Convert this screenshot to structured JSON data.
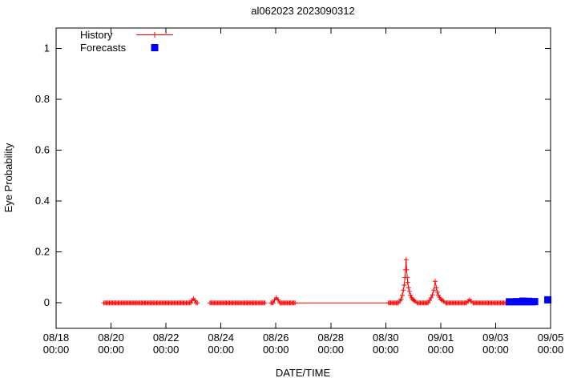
{
  "page": {
    "background": "#ffffff"
  },
  "legend": {
    "history_label": "History",
    "forecasts_label": "Forecasts"
  },
  "chart_data": {
    "type": "line",
    "title": "al062023 2023090312",
    "xlabel": "DATE/TIME",
    "ylabel": "Eye Probability",
    "x_unit": "days since 08/18 00:00",
    "xlim": [
      0,
      18
    ],
    "ylim": [
      -0.1,
      1.08
    ],
    "grid": false,
    "legend_position": "top-left-inside",
    "y_ticks": [
      {
        "value": 0,
        "label": "0"
      },
      {
        "value": 0.2,
        "label": "0.2"
      },
      {
        "value": 0.4,
        "label": "0.4"
      },
      {
        "value": 0.6,
        "label": "0.6"
      },
      {
        "value": 0.8,
        "label": "0.8"
      },
      {
        "value": 1,
        "label": "1"
      }
    ],
    "x_ticks": [
      {
        "day": 0,
        "date": "08/18",
        "time": "00:00"
      },
      {
        "day": 2,
        "date": "08/20",
        "time": "00:00"
      },
      {
        "day": 4,
        "date": "08/22",
        "time": "00:00"
      },
      {
        "day": 6,
        "date": "08/24",
        "time": "00:00"
      },
      {
        "day": 8,
        "date": "08/26",
        "time": "00:00"
      },
      {
        "day": 10,
        "date": "08/28",
        "time": "00:00"
      },
      {
        "day": 12,
        "date": "08/30",
        "time": "00:00"
      },
      {
        "day": 14,
        "date": "09/01",
        "time": "00:00"
      },
      {
        "day": 16,
        "date": "09/03",
        "time": "00:00"
      },
      {
        "day": 18,
        "date": "09/05",
        "time": "00:00"
      }
    ],
    "series": [
      {
        "name": "History",
        "style": "linespoints",
        "marker": "plus",
        "color": "#ff0000",
        "sample_step_days": 0.04,
        "segments": [
          {
            "markers": true,
            "zero_run": [
              1.74,
              5.15
            ],
            "points": [
              [
                4.95,
                0.01
              ],
              [
                5.0,
                0.016
              ],
              [
                5.05,
                0.01
              ]
            ]
          },
          {
            "markers": true,
            "zero_run": [
              5.6,
              7.62
            ],
            "points": []
          },
          {
            "markers": true,
            "zero_run": [
              7.82,
              8.7
            ],
            "points": [
              [
                7.95,
                0.012
              ],
              [
                8.02,
                0.02
              ],
              [
                8.08,
                0.012
              ]
            ]
          },
          {
            "markers": false,
            "zero_run": [
              8.7,
              12.1
            ],
            "points": []
          },
          {
            "markers": true,
            "zero_run": [
              12.1,
              16.4
            ],
            "points": [
              [
                12.52,
                0.008
              ],
              [
                12.56,
                0.015
              ],
              [
                12.6,
                0.03
              ],
              [
                12.64,
                0.05
              ],
              [
                12.67,
                0.07
              ],
              [
                12.7,
                0.1
              ],
              [
                12.72,
                0.13
              ],
              [
                12.74,
                0.17
              ],
              [
                12.76,
                0.13
              ],
              [
                12.78,
                0.1
              ],
              [
                12.8,
                0.08
              ],
              [
                12.83,
                0.06
              ],
              [
                12.86,
                0.045
              ],
              [
                12.9,
                0.03
              ],
              [
                12.94,
                0.02
              ],
              [
                12.98,
                0.014
              ],
              [
                13.02,
                0.01
              ],
              [
                13.06,
                0.007
              ],
              [
                13.6,
                0.01
              ],
              [
                13.65,
                0.02
              ],
              [
                13.7,
                0.032
              ],
              [
                13.75,
                0.05
              ],
              [
                13.8,
                0.085
              ],
              [
                13.84,
                0.06
              ],
              [
                13.88,
                0.042
              ],
              [
                13.92,
                0.03
              ],
              [
                13.96,
                0.022
              ],
              [
                14.0,
                0.015
              ],
              [
                14.05,
                0.01
              ],
              [
                14.1,
                0.007
              ],
              [
                15.0,
                0.007
              ],
              [
                15.05,
                0.012
              ],
              [
                15.1,
                0.007
              ]
            ]
          }
        ]
      },
      {
        "name": "Forecasts",
        "style": "points",
        "marker": "filled-square",
        "color": "#0000ff",
        "points": [
          [
            16.5,
            0.004
          ],
          [
            16.63,
            0.004
          ],
          [
            16.75,
            0.005
          ],
          [
            16.88,
            0.004
          ],
          [
            17.0,
            0.007
          ],
          [
            17.1,
            0.004
          ],
          [
            17.2,
            0.006
          ],
          [
            17.32,
            0.004
          ],
          [
            17.42,
            0.005
          ],
          [
            17.9,
            0.012
          ]
        ]
      }
    ]
  }
}
